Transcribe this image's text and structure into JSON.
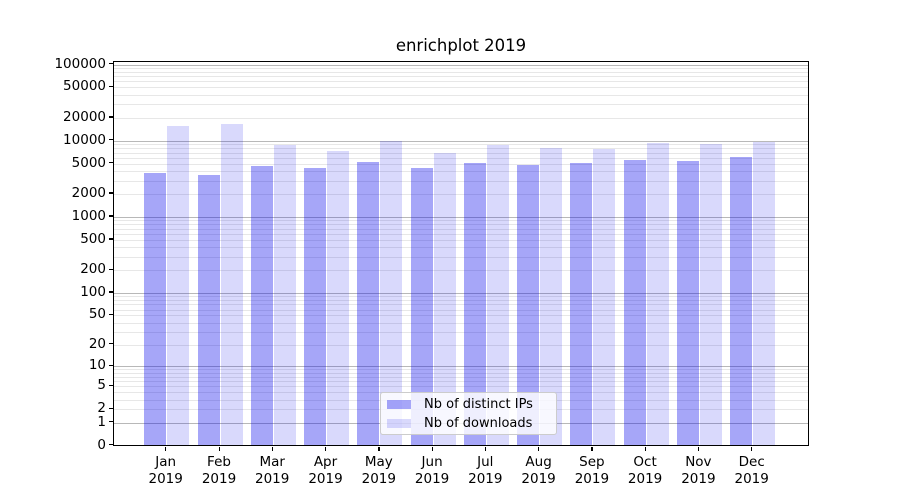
{
  "title": "enrichplot 2019",
  "colors": {
    "ips_bar": "#0000EB59",
    "downloads_bar": "#0000EB26",
    "major_grid": "#b8b8b8",
    "minor_grid": "#e7e7e7",
    "axis": "#000000",
    "background": "#ffffff"
  },
  "legend": {
    "items": [
      {
        "label": "Nb of distinct IPs",
        "color": "#0000EB59"
      },
      {
        "label": "Nb of downloads",
        "color": "#0000EB26"
      }
    ]
  },
  "chart_data": {
    "type": "bar",
    "title": "enrichplot 2019",
    "xlabel": "",
    "ylabel": "",
    "yscale": "log1p-symlog",
    "ylim": [
      0,
      100000
    ],
    "grid": "horizontal, major and minor log gridlines",
    "legend_position": "lower center",
    "categories": [
      "Jan",
      "Feb",
      "Mar",
      "Apr",
      "May",
      "Jun",
      "Jul",
      "Aug",
      "Sep",
      "Oct",
      "Nov",
      "Dec"
    ],
    "category_year": "2019",
    "yticks": [
      0,
      1,
      2,
      5,
      10,
      20,
      50,
      100,
      200,
      500,
      1000,
      2000,
      5000,
      10000,
      20000,
      50000,
      100000
    ],
    "ytick_labels": [
      "0",
      "1",
      "2",
      "5",
      "10",
      "20",
      "50",
      "100",
      "200",
      "500",
      "1000",
      "2000",
      "5000",
      "10000",
      "20000",
      "50000",
      "100000"
    ],
    "series": [
      {
        "name": "Nb of distinct IPs",
        "color": "#0000EB59",
        "values": [
          3700,
          3450,
          4600,
          4300,
          5250,
          4300,
          5100,
          4750,
          5000,
          5450,
          5400,
          5950
        ]
      },
      {
        "name": "Nb of downloads",
        "color": "#0000EB26",
        "values": [
          15200,
          16400,
          8600,
          7150,
          9850,
          6750,
          8600,
          7900,
          7700,
          9100,
          8900,
          9600
        ]
      }
    ]
  }
}
